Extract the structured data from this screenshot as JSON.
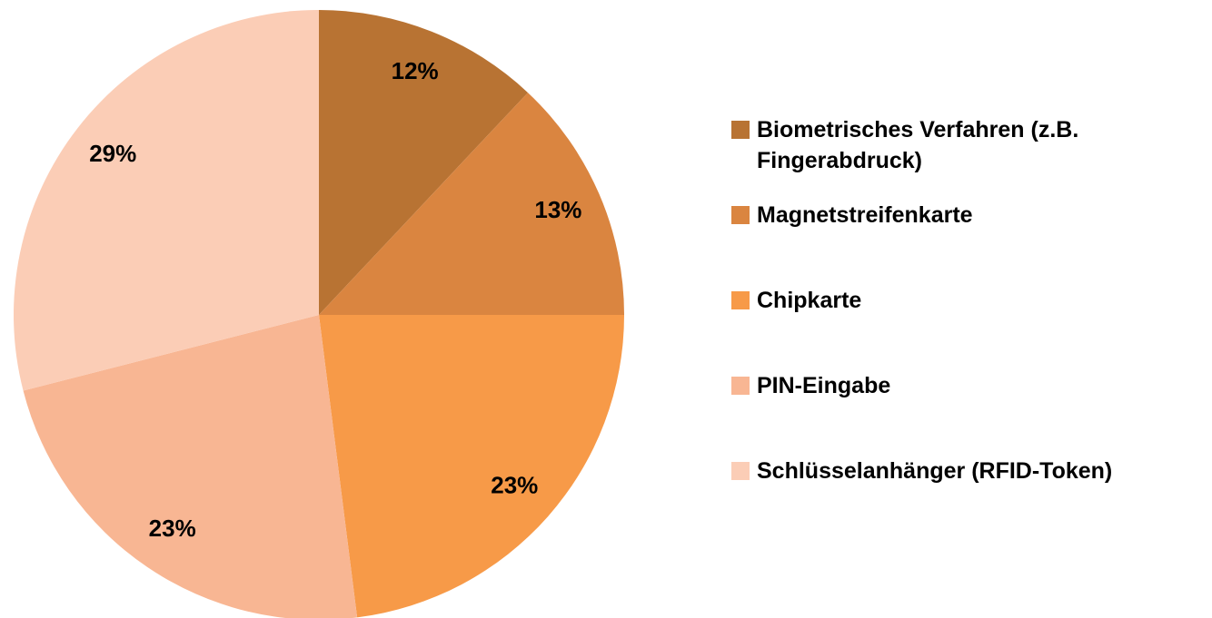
{
  "chart_data": {
    "type": "pie",
    "categories": [
      "Biometrisches Verfahren (z.B. Fingerabdruck)",
      "Magnetstreifenkarte",
      "Chipkarte",
      "PIN-Eingabe",
      "Schlüsselanhänger (RFID-Token)"
    ],
    "values": [
      12,
      13,
      23,
      23,
      29
    ],
    "value_labels": [
      "12%",
      "13%",
      "23%",
      "23%",
      "29%"
    ],
    "colors": [
      "#b87333",
      "#da8540",
      "#f79a48",
      "#f8b693",
      "#fbcdb6"
    ],
    "legend": "right"
  }
}
